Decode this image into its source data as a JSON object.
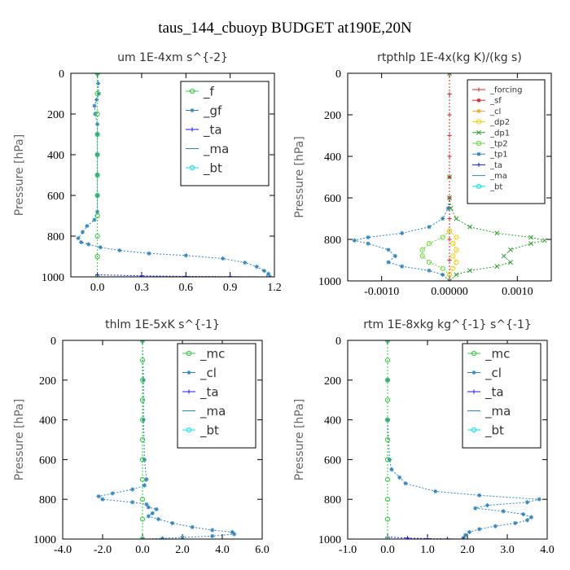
{
  "page_title": "taus_144_cbuoyp  BUDGET at190E,20N",
  "colors": {
    "f": "#2ecc40",
    "gf": "#2e86c1",
    "ta": "#1a1aff",
    "ma": "#2e86c1",
    "bt": "#00e5e5",
    "forcing": "#d62728",
    "sf": "#d62728",
    "cl_yellow": "#f5a623",
    "dp2": "#f5d000",
    "dp1": "#2ca02c",
    "tp2": "#66dd33",
    "tp1": "#2e86c1",
    "mc": "#2ecc40",
    "cl": "#2e86c1"
  },
  "chart_data": [
    {
      "type": "line",
      "title": "um  1E-4xm s^{-2}",
      "xlabel": "",
      "ylabel": "Pressure [hPa]",
      "xlim": [
        -0.18,
        1.2
      ],
      "ylim": [
        1000,
        0
      ],
      "x_ticks": [
        "0.0",
        "0.3",
        "0.6",
        "0.9",
        "1.2"
      ],
      "x_tick_values": [
        0.0,
        0.3,
        0.6,
        0.9,
        1.2
      ],
      "y_ticks": [
        "0",
        "200",
        "400",
        "600",
        "800",
        "1000"
      ],
      "y_tick_values": [
        0,
        200,
        400,
        600,
        800,
        1000
      ],
      "legend": [
        "_f",
        "_gf",
        "_ta",
        "_ma",
        "_bt"
      ],
      "series": [
        {
          "key": "gf",
          "color": "#2e86c1",
          "marker": "star",
          "points": [
            [
              0.0,
              0
            ],
            [
              0.005,
              50
            ],
            [
              0.01,
              100
            ],
            [
              -0.005,
              130
            ],
            [
              -0.02,
              160
            ],
            [
              -0.015,
              200
            ],
            [
              0.0,
              250
            ],
            [
              0.0,
              300
            ],
            [
              0.0,
              400
            ],
            [
              0.0,
              500
            ],
            [
              0.0,
              600
            ],
            [
              0.0,
              680
            ],
            [
              -0.02,
              720
            ],
            [
              -0.07,
              750
            ],
            [
              -0.1,
              780
            ],
            [
              -0.13,
              810
            ],
            [
              -0.11,
              830
            ],
            [
              -0.06,
              840
            ],
            [
              0.02,
              855
            ],
            [
              0.15,
              870
            ],
            [
              0.35,
              885
            ],
            [
              0.6,
              895
            ],
            [
              0.85,
              910
            ],
            [
              1.0,
              930
            ],
            [
              1.08,
              950
            ],
            [
              1.13,
              970
            ],
            [
              1.16,
              985
            ],
            [
              1.17,
              1000
            ]
          ]
        },
        {
          "key": "f",
          "color": "#2ecc40",
          "marker": "circle",
          "points": [
            [
              0.0,
              0
            ],
            [
              0.0,
              100
            ],
            [
              0.0,
              200
            ],
            [
              0.0,
              300
            ],
            [
              0.0,
              400
            ],
            [
              0.0,
              500
            ],
            [
              0.0,
              600
            ],
            [
              0.0,
              700
            ],
            [
              0.0,
              800
            ],
            [
              0.0,
              900
            ],
            [
              0.0,
              1000
            ]
          ]
        },
        {
          "key": "ta",
          "color": "#1a1aff",
          "marker": "plus",
          "points": [
            [
              0.0,
              990
            ],
            [
              0.3,
              995
            ],
            [
              0.6,
              998
            ],
            [
              0.9,
              999
            ],
            [
              1.15,
              1000
            ]
          ]
        }
      ]
    },
    {
      "type": "line",
      "title": "rtpthlp  1E-4x(kg K)/(kg s)",
      "xlabel": "",
      "ylabel": "Pressure [hPa]",
      "xlim": [
        -0.0015,
        0.0015
      ],
      "ylim": [
        1000,
        0
      ],
      "x_ticks": [
        "-0.0010",
        "0.00000",
        "0.0010"
      ],
      "x_tick_values": [
        -0.001,
        0.0,
        0.001
      ],
      "y_ticks": [
        "0",
        "200",
        "400",
        "600",
        "800",
        "1000"
      ],
      "y_tick_values": [
        0,
        200,
        400,
        600,
        800,
        1000
      ],
      "legend": [
        "_forcing",
        "_sf",
        "_cl",
        "_dp2",
        "_dp1",
        "_tp2",
        "_tp1",
        "_ta",
        "_ma",
        "_bt"
      ],
      "series": [
        {
          "key": "tp1",
          "color": "#2e86c1",
          "marker": "star",
          "points": [
            [
              0,
              0
            ],
            [
              0,
              500
            ],
            [
              0,
              600
            ],
            [
              -2e-05,
              650
            ],
            [
              -0.0001,
              700
            ],
            [
              -0.0003,
              740
            ],
            [
              -0.0007,
              770
            ],
            [
              -0.0012,
              790
            ],
            [
              -0.0014,
              805
            ],
            [
              -0.0012,
              820
            ],
            [
              -0.0009,
              850
            ],
            [
              -0.0008,
              880
            ],
            [
              -0.0009,
              910
            ],
            [
              -0.0007,
              930
            ],
            [
              -0.0003,
              950
            ],
            [
              -0.0001,
              970
            ],
            [
              0,
              1000
            ]
          ]
        },
        {
          "key": "dp1",
          "color": "#2ca02c",
          "marker": "x",
          "points": [
            [
              0,
              0
            ],
            [
              0,
              500
            ],
            [
              0,
              600
            ],
            [
              2e-05,
              650
            ],
            [
              0.0001,
              700
            ],
            [
              0.0003,
              740
            ],
            [
              0.0007,
              770
            ],
            [
              0.0012,
              790
            ],
            [
              0.0014,
              805
            ],
            [
              0.0012,
              820
            ],
            [
              0.0009,
              850
            ],
            [
              0.0008,
              880
            ],
            [
              0.0009,
              910
            ],
            [
              0.0007,
              930
            ],
            [
              0.0003,
              950
            ],
            [
              0.0001,
              970
            ],
            [
              0,
              1000
            ]
          ]
        },
        {
          "key": "tp2",
          "color": "#66dd33",
          "marker": "circle",
          "points": [
            [
              0,
              760
            ],
            [
              -0.0001,
              790
            ],
            [
              -0.0003,
              820
            ],
            [
              -0.0004,
              850
            ],
            [
              -0.0004,
              880
            ],
            [
              -0.0003,
              910
            ],
            [
              -0.0001,
              940
            ],
            [
              0,
              970
            ]
          ]
        },
        {
          "key": "dp2",
          "color": "#f5d000",
          "marker": "circle",
          "points": [
            [
              0,
              760
            ],
            [
              0.0001,
              790
            ],
            [
              5e-05,
              820
            ],
            [
              0.0001,
              850
            ],
            [
              5e-05,
              880
            ],
            [
              0.0001,
              910
            ],
            [
              5e-05,
              940
            ],
            [
              0,
              970
            ]
          ]
        },
        {
          "key": "forcing",
          "color": "#d62728",
          "marker": "plus",
          "points": [
            [
              0,
              0
            ],
            [
              0,
              100
            ],
            [
              0,
              200
            ],
            [
              0,
              300
            ],
            [
              0,
              400
            ],
            [
              0,
              500
            ],
            [
              0,
              600
            ],
            [
              0,
              700
            ],
            [
              0,
              800
            ],
            [
              0,
              900
            ],
            [
              0,
              1000
            ]
          ]
        }
      ]
    },
    {
      "type": "line",
      "title": "thlm  1E-5xK s^{-1}",
      "xlabel": "",
      "ylabel": "Pressure [hPa]",
      "xlim": [
        -4.0,
        6.0
      ],
      "ylim": [
        1000,
        0
      ],
      "x_ticks": [
        "-4.0",
        "-2.0",
        "0.0",
        "2.0",
        "4.0",
        "6.0"
      ],
      "x_tick_values": [
        -4.0,
        -2.0,
        0.0,
        2.0,
        4.0,
        6.0
      ],
      "y_ticks": [
        "0",
        "200",
        "400",
        "600",
        "800",
        "1000"
      ],
      "y_tick_values": [
        0,
        200,
        400,
        600,
        800,
        1000
      ],
      "legend": [
        "_mc",
        "_cl",
        "_ta",
        "_ma",
        "_bt"
      ],
      "series": [
        {
          "key": "cl",
          "color": "#2e86c1",
          "marker": "star",
          "points": [
            [
              0,
              0
            ],
            [
              0.05,
              200
            ],
            [
              0.05,
              400
            ],
            [
              0.1,
              600
            ],
            [
              0.2,
              700
            ],
            [
              0.1,
              730
            ],
            [
              -0.5,
              750
            ],
            [
              -1.5,
              770
            ],
            [
              -2.2,
              785
            ],
            [
              -2.0,
              800
            ],
            [
              -0.5,
              815
            ],
            [
              0.2,
              825
            ],
            [
              0.3,
              840
            ],
            [
              0.7,
              850
            ],
            [
              0.5,
              870
            ],
            [
              0.3,
              885
            ],
            [
              0.8,
              900
            ],
            [
              1.5,
              920
            ],
            [
              2.5,
              940
            ],
            [
              3.5,
              955
            ],
            [
              4.5,
              965
            ],
            [
              4.6,
              975
            ],
            [
              3.5,
              985
            ],
            [
              2.0,
              992
            ],
            [
              1.0,
              997
            ],
            [
              0,
              1000
            ]
          ]
        },
        {
          "key": "mc",
          "color": "#2ecc40",
          "marker": "circle",
          "points": [
            [
              0,
              0
            ],
            [
              0,
              100
            ],
            [
              0,
              200
            ],
            [
              0,
              300
            ],
            [
              0,
              400
            ],
            [
              0,
              500
            ],
            [
              0,
              600
            ],
            [
              0,
              700
            ],
            [
              0,
              800
            ],
            [
              0,
              900
            ],
            [
              0,
              1000
            ]
          ]
        }
      ]
    },
    {
      "type": "line",
      "title": "rtm  1E-8xkg kg^{-1} s^{-1}",
      "xlabel": "",
      "ylabel": "Pressure [hPa]",
      "xlim": [
        -1.0,
        4.0
      ],
      "ylim": [
        1000,
        0
      ],
      "x_ticks": [
        "-1.0",
        "0.0",
        "1.0",
        "2.0",
        "3.0",
        "4.0"
      ],
      "x_tick_values": [
        -1.0,
        0.0,
        1.0,
        2.0,
        3.0,
        4.0
      ],
      "y_ticks": [
        "0",
        "200",
        "400",
        "600",
        "800",
        "1000"
      ],
      "y_tick_values": [
        0,
        200,
        400,
        600,
        800,
        1000
      ],
      "legend": [
        "_mc",
        "_cl",
        "_ta",
        "_ma",
        "_bt"
      ],
      "series": [
        {
          "key": "cl",
          "color": "#2e86c1",
          "marker": "star",
          "points": [
            [
              0,
              0
            ],
            [
              0,
              200
            ],
            [
              0,
              400
            ],
            [
              0.05,
              600
            ],
            [
              0.1,
              650
            ],
            [
              0.3,
              690
            ],
            [
              0.45,
              720
            ],
            [
              1.2,
              760
            ],
            [
              2.3,
              780
            ],
            [
              3.8,
              800
            ],
            [
              3.5,
              815
            ],
            [
              2.5,
              830
            ],
            [
              2.2,
              845
            ],
            [
              2.9,
              860
            ],
            [
              3.4,
              875
            ],
            [
              3.6,
              890
            ],
            [
              3.5,
              905
            ],
            [
              3.2,
              920
            ],
            [
              2.7,
              935
            ],
            [
              2.3,
              950
            ],
            [
              2.05,
              965
            ],
            [
              1.95,
              980
            ],
            [
              1.9,
              995
            ],
            [
              1.9,
              1000
            ]
          ]
        },
        {
          "key": "ta",
          "color": "#1a1aff",
          "marker": "plus",
          "points": [
            [
              0,
              990
            ],
            [
              0.5,
              995
            ],
            [
              1.0,
              998
            ],
            [
              1.5,
              999
            ],
            [
              1.9,
              1000
            ]
          ]
        },
        {
          "key": "mc",
          "color": "#2ecc40",
          "marker": "circle",
          "points": [
            [
              0,
              0
            ],
            [
              0,
              100
            ],
            [
              0,
              200
            ],
            [
              0,
              300
            ],
            [
              0,
              400
            ],
            [
              0,
              500
            ],
            [
              0,
              600
            ],
            [
              0,
              700
            ],
            [
              0,
              800
            ],
            [
              0,
              900
            ],
            [
              0,
              1000
            ]
          ]
        }
      ]
    }
  ]
}
